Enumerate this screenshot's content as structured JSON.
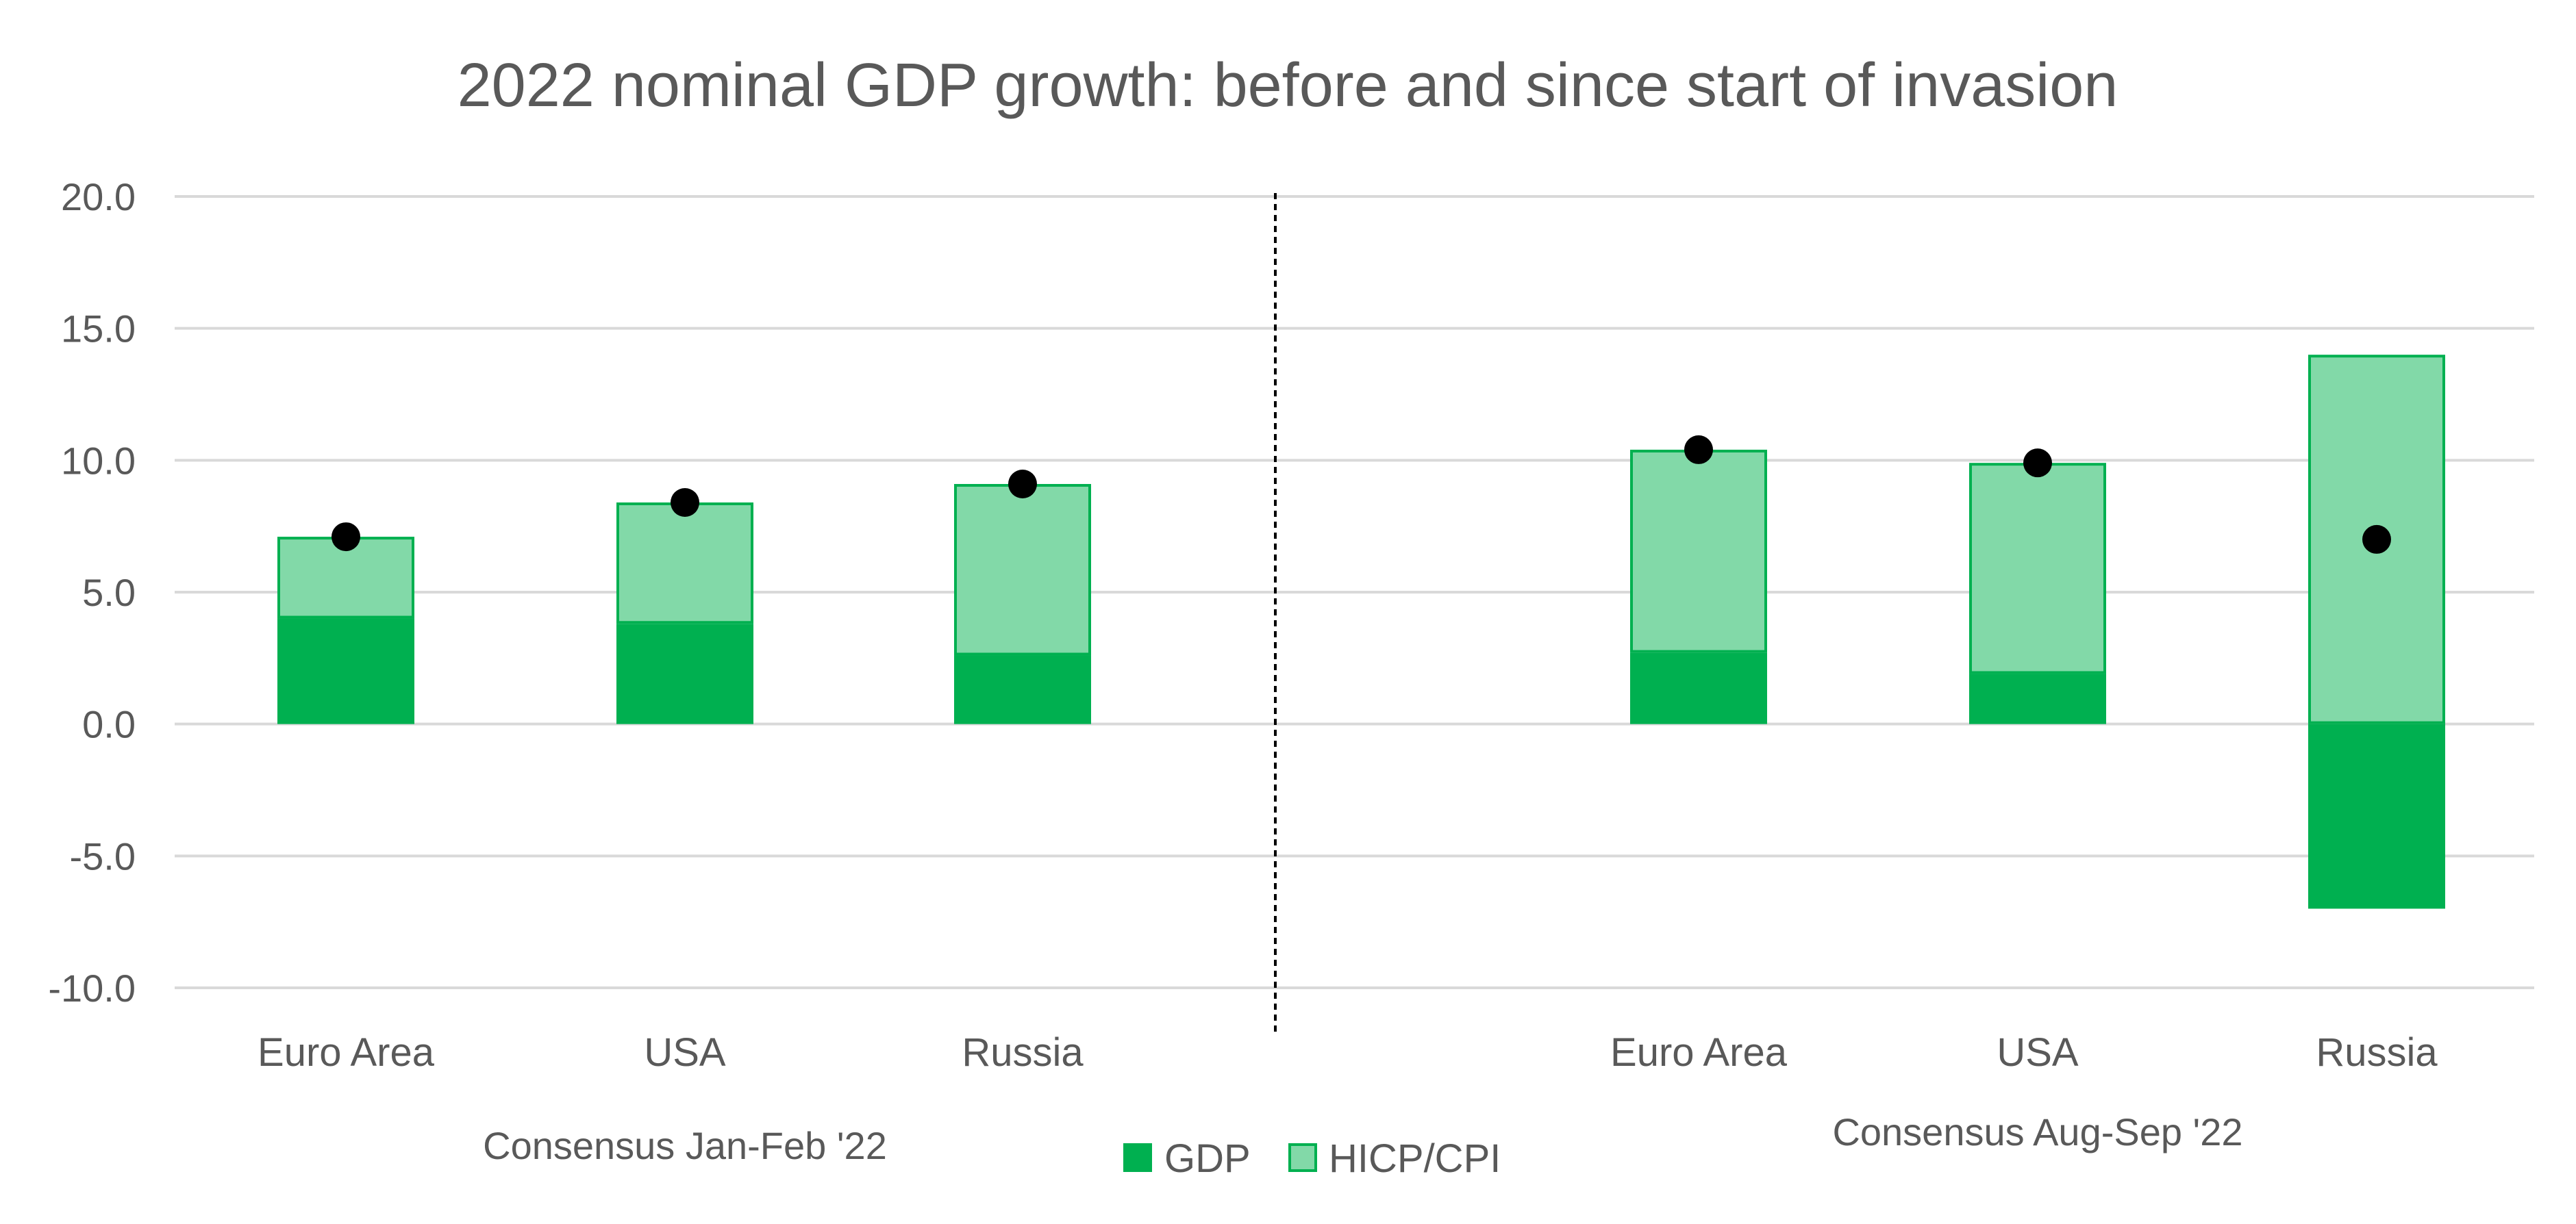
{
  "chart_data": {
    "type": "bar",
    "stacked": true,
    "title": "2022 nominal GDP growth: before and since start of invasion",
    "xlabel": "",
    "ylabel": "",
    "ylim": [
      -10,
      20
    ],
    "yticks": [
      20,
      15,
      10,
      5,
      0,
      -5,
      -10
    ],
    "ytick_labels": [
      "20.0",
      "15.0",
      "10.0",
      "5.0",
      "0.0",
      "-5.0",
      "-10.0"
    ],
    "grid": true,
    "legend_position": "bottom-center",
    "groups": [
      {
        "label": "Consensus Jan-Feb '22",
        "categories": [
          "Euro Area",
          "USA",
          "Russia"
        ]
      },
      {
        "label": "Consensus Aug-Sep '22",
        "categories": [
          "Euro Area",
          "USA",
          "Russia"
        ]
      }
    ],
    "categories": [
      "Euro Area",
      "USA",
      "Russia",
      "Euro Area",
      "USA",
      "Russia"
    ],
    "series": [
      {
        "name": "GDP",
        "color": "#00b050",
        "values": [
          4.0,
          3.8,
          2.6,
          2.7,
          1.9,
          -7.0
        ]
      },
      {
        "name": "HICP/CPI",
        "color": "#82d9a8",
        "border_color": "#00b050",
        "values": [
          3.1,
          4.6,
          6.5,
          7.7,
          8.0,
          14.0
        ]
      }
    ],
    "nominal_gdp_markers": {
      "color": "#000000",
      "values": [
        7.1,
        8.4,
        9.1,
        10.4,
        9.9,
        7.0
      ]
    },
    "divider": {
      "style": "dashed",
      "color": "#000000"
    }
  }
}
